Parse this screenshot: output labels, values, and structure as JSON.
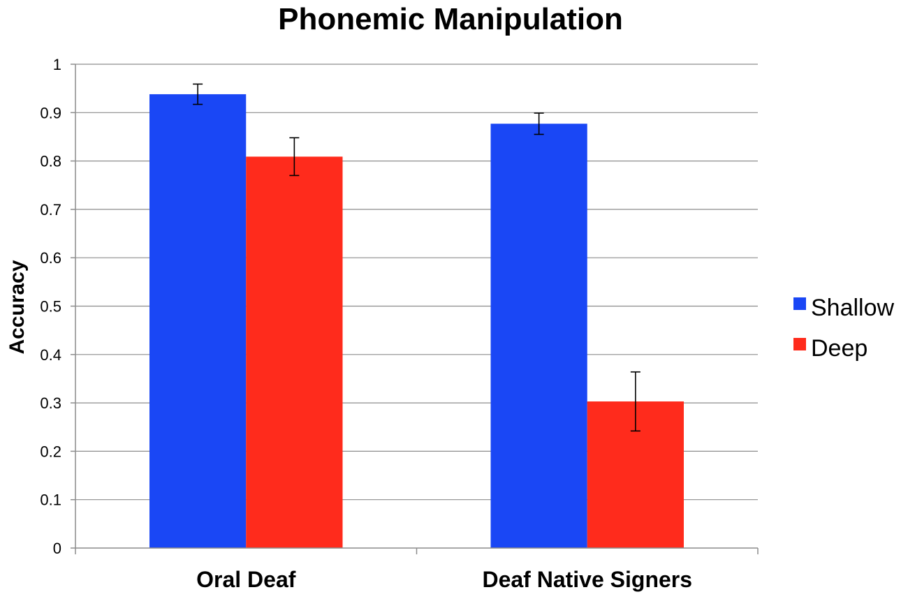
{
  "chart_data": {
    "type": "bar",
    "title": "Phonemic Manipulation",
    "xlabel": "",
    "ylabel": "Accuracy",
    "categories": [
      "Oral Deaf",
      "Deaf Native Signers"
    ],
    "series": [
      {
        "name": "Shallow",
        "color": "#1a47f5",
        "values": [
          0.938,
          0.877
        ],
        "error": [
          0.021,
          0.022
        ]
      },
      {
        "name": "Deep",
        "color": "#ff2b1c",
        "values": [
          0.809,
          0.303
        ],
        "error": [
          0.039,
          0.061
        ]
      }
    ],
    "ylim": [
      0,
      1
    ],
    "yticks": [
      "0",
      "0.1",
      "0.2",
      "0.3",
      "0.4",
      "0.5",
      "0.6",
      "0.7",
      "0.8",
      "0.9",
      "1"
    ],
    "grid": true,
    "legend_position": "right"
  }
}
